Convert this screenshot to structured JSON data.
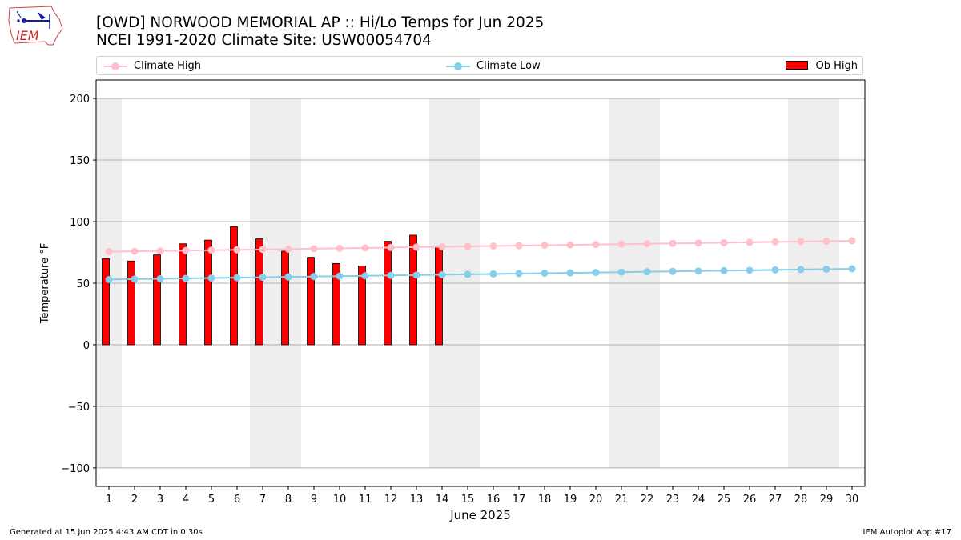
{
  "header": {
    "title_line1": "[OWD] NORWOOD MEMORIAL AP :: Hi/Lo Temps for Jun 2025",
    "title_line2": "NCEI 1991-2020 Climate Site: USW00054704",
    "logo_text": "IEM"
  },
  "legend": {
    "climate_high": "Climate High",
    "climate_low": "Climate Low",
    "ob_high": "Ob High"
  },
  "footer": {
    "generated": "Generated at 15 Jun 2025 4:43 AM CDT in 0.30s",
    "app": "IEM Autoplot App #17"
  },
  "colors": {
    "climate_high": "#ffc0cb",
    "climate_low": "#87ceeb",
    "ob_high": "#ff0000",
    "weekend_shade": "#eeeeee",
    "grid": "#b0b0b0"
  },
  "chart_data": {
    "type": "bar",
    "xlabel": "June 2025",
    "ylabel": "Temperature °F",
    "xlim": [
      0.5,
      30.5
    ],
    "ylim": [
      -115,
      215
    ],
    "yticks": [
      -100,
      -50,
      0,
      50,
      100,
      150,
      200
    ],
    "grid": "horizontal",
    "legend_position": "top",
    "days": [
      1,
      2,
      3,
      4,
      5,
      6,
      7,
      8,
      9,
      10,
      11,
      12,
      13,
      14,
      15,
      16,
      17,
      18,
      19,
      20,
      21,
      22,
      23,
      24,
      25,
      26,
      27,
      28,
      29,
      30
    ],
    "weekend_ranges": [
      [
        0.5,
        1.5
      ],
      [
        6.5,
        8.5
      ],
      [
        13.5,
        15.5
      ],
      [
        20.5,
        22.5
      ],
      [
        27.5,
        29.5
      ]
    ],
    "series": [
      {
        "name": "Ob High",
        "kind": "bar",
        "x": [
          1,
          2,
          3,
          4,
          5,
          6,
          7,
          8,
          9,
          10,
          11,
          12,
          13,
          14
        ],
        "values": [
          70,
          68,
          73,
          82,
          85,
          96,
          86,
          76,
          71,
          66,
          64,
          84,
          89,
          80
        ]
      },
      {
        "name": "Climate High",
        "kind": "line",
        "x": [
          1,
          2,
          3,
          4,
          5,
          6,
          7,
          8,
          9,
          10,
          11,
          12,
          13,
          14,
          15,
          16,
          17,
          18,
          19,
          20,
          21,
          22,
          23,
          24,
          25,
          26,
          27,
          28,
          29,
          30
        ],
        "values": [
          75.6,
          75.9,
          76.2,
          76.5,
          76.8,
          77.1,
          77.4,
          77.7,
          78.0,
          78.3,
          78.6,
          79.0,
          79.3,
          79.6,
          79.9,
          80.2,
          80.5,
          80.8,
          81.1,
          81.4,
          81.7,
          82.0,
          82.3,
          82.6,
          82.9,
          83.2,
          83.5,
          83.8,
          84.1,
          84.4
        ]
      },
      {
        "name": "Climate Low",
        "kind": "line",
        "x": [
          1,
          2,
          3,
          4,
          5,
          6,
          7,
          8,
          9,
          10,
          11,
          12,
          13,
          14,
          15,
          16,
          17,
          18,
          19,
          20,
          21,
          22,
          23,
          24,
          25,
          26,
          27,
          28,
          29,
          30
        ],
        "values": [
          53.0,
          53.3,
          53.6,
          53.9,
          54.2,
          54.5,
          54.8,
          55.1,
          55.4,
          55.7,
          56.0,
          56.3,
          56.6,
          56.9,
          57.2,
          57.5,
          57.8,
          58.1,
          58.4,
          58.7,
          59.0,
          59.3,
          59.6,
          59.9,
          60.2,
          60.5,
          60.8,
          61.1,
          61.4,
          61.7
        ]
      }
    ]
  }
}
